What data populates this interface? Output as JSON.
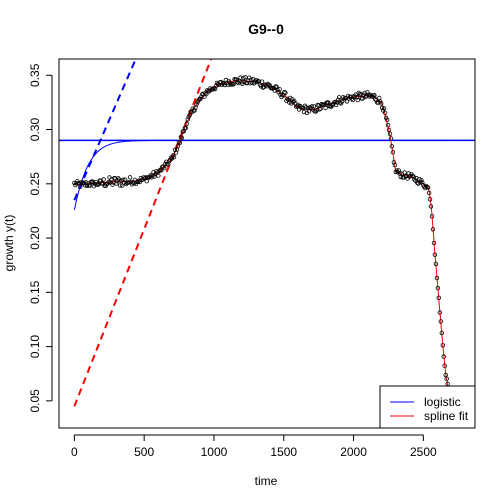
{
  "chart_data": {
    "type": "scatter",
    "title": "G9--0",
    "xlabel": "time",
    "ylabel": "growth y(t)",
    "xlim": [
      -110,
      2870
    ],
    "ylim": [
      0.025,
      0.365
    ],
    "x_ticks": [
      0,
      500,
      1000,
      1500,
      2000,
      2500
    ],
    "y_ticks": [
      0.05,
      0.1,
      0.15,
      0.2,
      0.25,
      0.3,
      0.35
    ],
    "grid": false,
    "legend_position": "bottom-right",
    "legend": [
      {
        "label": "logistic",
        "color": "#0000ff"
      },
      {
        "label": "spline fit",
        "color": "#ff0000"
      }
    ],
    "observations_profile": {
      "x": [
        0,
        50,
        100,
        150,
        200,
        300,
        400,
        500,
        600,
        700,
        760,
        800,
        850,
        900,
        950,
        1000,
        1050,
        1100,
        1200,
        1300,
        1400,
        1500,
        1600,
        1700,
        1800,
        1900,
        2000,
        2100,
        2150,
        2200,
        2230,
        2260,
        2280,
        2300,
        2350,
        2400,
        2450,
        2500,
        2540,
        2560,
        2580,
        2600,
        2620,
        2640,
        2660,
        2680,
        2700
      ],
      "y": [
        0.25,
        0.249,
        0.25,
        0.25,
        0.251,
        0.252,
        0.252,
        0.254,
        0.26,
        0.273,
        0.29,
        0.305,
        0.318,
        0.328,
        0.335,
        0.339,
        0.342,
        0.344,
        0.345,
        0.344,
        0.34,
        0.332,
        0.32,
        0.318,
        0.322,
        0.327,
        0.33,
        0.331,
        0.33,
        0.325,
        0.312,
        0.295,
        0.28,
        0.262,
        0.258,
        0.257,
        0.254,
        0.25,
        0.245,
        0.225,
        0.19,
        0.16,
        0.13,
        0.1,
        0.075,
        0.06,
        0.05
      ]
    },
    "spline_fit": {
      "x": [
        0,
        50,
        100,
        150,
        200,
        300,
        400,
        500,
        600,
        700,
        760,
        800,
        850,
        900,
        950,
        1000,
        1050,
        1100,
        1200,
        1300,
        1400,
        1500,
        1600,
        1700,
        1800,
        1900,
        2000,
        2100,
        2150,
        2200,
        2230,
        2260,
        2280,
        2300,
        2350,
        2400,
        2450,
        2500,
        2540,
        2560,
        2580,
        2600,
        2620,
        2640,
        2660,
        2680,
        2700
      ],
      "y": [
        0.25,
        0.249,
        0.25,
        0.25,
        0.251,
        0.252,
        0.252,
        0.254,
        0.26,
        0.273,
        0.29,
        0.305,
        0.318,
        0.328,
        0.335,
        0.339,
        0.342,
        0.344,
        0.345,
        0.344,
        0.34,
        0.332,
        0.32,
        0.318,
        0.322,
        0.327,
        0.33,
        0.331,
        0.33,
        0.325,
        0.312,
        0.295,
        0.28,
        0.262,
        0.258,
        0.257,
        0.254,
        0.25,
        0.245,
        0.225,
        0.19,
        0.16,
        0.13,
        0.1,
        0.075,
        0.06,
        0.05
      ]
    },
    "logistic_fit": {
      "A": 0.29,
      "y0": 0.226,
      "mu": 0.0004,
      "color": "#0000ff"
    },
    "tangent_logistic": {
      "from": [
        0,
        0.235
      ],
      "to": [
        440,
        0.365
      ],
      "color": "#0000ff",
      "style": "dashed"
    },
    "tangent_spline": {
      "from": [
        0,
        0.045
      ],
      "to": [
        980,
        0.365
      ],
      "color": "#ff0000",
      "style": "dashed"
    },
    "horizontal_line": {
      "y": 0.29,
      "color": "#0000ff"
    }
  }
}
